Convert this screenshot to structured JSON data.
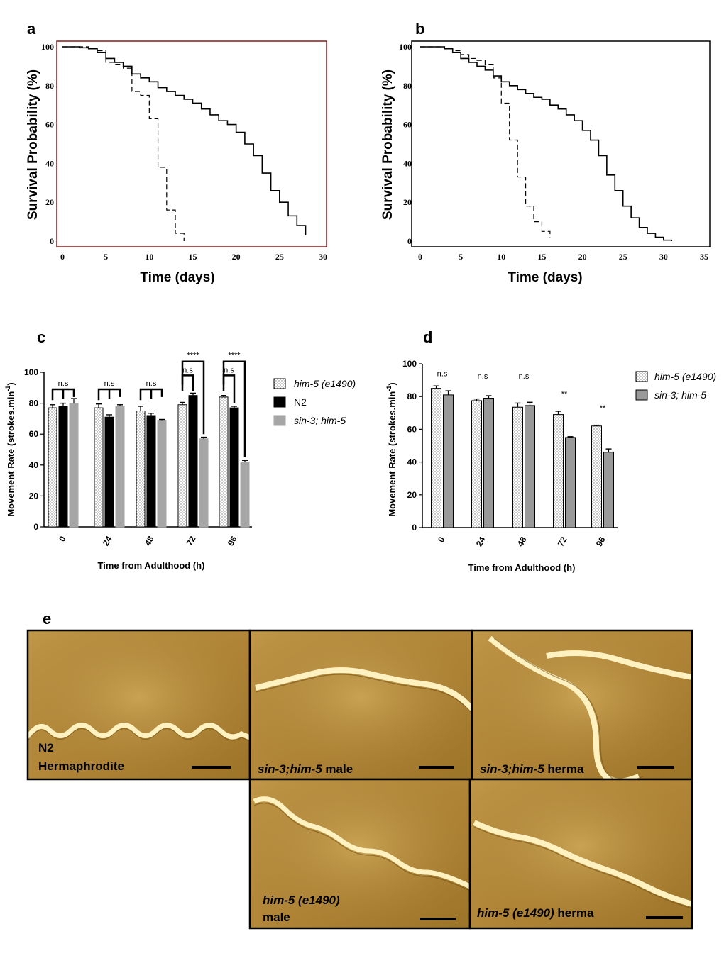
{
  "panel_labels": {
    "a": "a",
    "b": "b",
    "c": "c",
    "d": "d",
    "e": "e"
  },
  "colors": {
    "him5": "#ffffff",
    "n2": "#000000",
    "sin3": "#a6a6a6",
    "sin3_d": "#999999",
    "frame_a": "#8b1a1a",
    "photo_bg": "#b48a3a",
    "worm": "#fff0bb"
  },
  "chart_data": [
    {
      "id": "a",
      "type": "line",
      "xlabel": "Time (days)",
      "ylabel": "Survival Probability (%)",
      "xlim": [
        0,
        30
      ],
      "ylim": [
        0,
        100
      ],
      "xticks": [
        0,
        5,
        10,
        15,
        20,
        25,
        30
      ],
      "yticks": [
        0,
        20,
        40,
        60,
        80,
        100
      ],
      "series": [
        {
          "name": "solid",
          "x": [
            0,
            1,
            2,
            3,
            4,
            5,
            6,
            7,
            8,
            9,
            10,
            11,
            12,
            13,
            14,
            15,
            16,
            17,
            18,
            19,
            20,
            21,
            22,
            23,
            24,
            25,
            26,
            27,
            28
          ],
          "y": [
            100,
            100,
            99.5,
            99,
            97,
            94,
            92,
            90,
            86,
            84,
            82,
            79,
            77,
            75,
            73,
            71,
            68,
            65,
            62,
            60,
            56,
            50,
            44,
            35,
            26,
            20,
            13,
            8,
            3
          ]
        },
        {
          "name": "dashed",
          "x": [
            0,
            1,
            2,
            3,
            4,
            5,
            6,
            7,
            8,
            9,
            10,
            11,
            12,
            13,
            14
          ],
          "y": [
            100,
            100,
            100,
            99,
            98,
            92,
            91,
            89,
            77,
            75,
            63,
            38,
            16,
            4,
            0
          ]
        }
      ]
    },
    {
      "id": "b",
      "type": "line",
      "xlabel": "Time (days)",
      "ylabel": "Survival Probability (%)",
      "xlim": [
        0,
        35
      ],
      "ylim": [
        0,
        100
      ],
      "xticks": [
        0,
        5,
        10,
        15,
        20,
        25,
        30,
        35
      ],
      "yticks": [
        0,
        20,
        40,
        60,
        80,
        100
      ],
      "series": [
        {
          "name": "solid",
          "x": [
            0,
            1,
            2,
            3,
            4,
            5,
            6,
            7,
            8,
            9,
            10,
            11,
            12,
            13,
            14,
            15,
            16,
            17,
            18,
            19,
            20,
            21,
            22,
            23,
            24,
            25,
            26,
            27,
            28,
            29,
            30,
            31
          ],
          "y": [
            100,
            100,
            100,
            99,
            97,
            94,
            92,
            90,
            88,
            85,
            82,
            80,
            78,
            76,
            74,
            73,
            70,
            68,
            65,
            62,
            57,
            52,
            44,
            34,
            26,
            18,
            12,
            7,
            4,
            2,
            0.5,
            0
          ]
        },
        {
          "name": "dashed",
          "x": [
            0,
            1,
            2,
            3,
            4,
            5,
            6,
            7,
            8,
            9,
            10,
            11,
            12,
            13,
            14,
            15,
            16
          ],
          "y": [
            100,
            100,
            100,
            99,
            98,
            96,
            94,
            93,
            91,
            84,
            71,
            52,
            33,
            18,
            10,
            5,
            2
          ]
        }
      ]
    },
    {
      "id": "c",
      "type": "bar",
      "xlabel": "Time from Adulthood (h)",
      "ylabel_main": "Movement Rate (strokes.min",
      "ylabel_sup": "-1",
      "ylabel_close": ")",
      "ylim": [
        0,
        100
      ],
      "yticks": [
        0,
        20,
        40,
        60,
        80,
        100
      ],
      "categories": [
        "0",
        "24",
        "48",
        "72",
        "96"
      ],
      "series": [
        {
          "name": "him-5 (e1490)",
          "values": [
            77,
            77,
            75,
            79,
            84
          ],
          "errors": [
            2,
            2.5,
            3,
            1.5,
            1
          ]
        },
        {
          "name": "N2",
          "values": [
            78,
            71,
            72,
            85,
            77
          ],
          "errors": [
            2,
            1.5,
            1.5,
            1.5,
            1
          ]
        },
        {
          "name": "sin-3; him-5",
          "values": [
            80,
            78,
            69,
            57,
            42
          ],
          "errors": [
            3,
            1,
            0.5,
            1,
            1
          ]
        }
      ],
      "significance": [
        {
          "category": "0",
          "labels": [
            "n.s"
          ]
        },
        {
          "category": "24",
          "labels": [
            "n.s"
          ]
        },
        {
          "category": "48",
          "labels": [
            "n.s"
          ]
        },
        {
          "category": "72",
          "labels": [
            "****",
            "n.s"
          ]
        },
        {
          "category": "96",
          "labels": [
            "****",
            "n.s"
          ]
        }
      ]
    },
    {
      "id": "d",
      "type": "bar",
      "xlabel": "Time from Adulthood (h)",
      "ylabel_main": "Movement Rate (strokes.min",
      "ylabel_sup": "-1",
      "ylabel_close": ")",
      "ylim": [
        0,
        100
      ],
      "yticks": [
        0,
        20,
        40,
        60,
        80,
        100
      ],
      "categories": [
        "0",
        "24",
        "48",
        "72",
        "96"
      ],
      "series": [
        {
          "name": "him-5 (e1490)",
          "values": [
            85,
            77.5,
            73.5,
            69,
            62
          ],
          "errors": [
            1.5,
            1,
            2.5,
            2,
            0.5
          ]
        },
        {
          "name": "sin-3; him-5",
          "values": [
            81,
            79,
            74.5,
            55,
            46
          ],
          "errors": [
            2.5,
            1.5,
            2,
            0.5,
            2
          ]
        }
      ],
      "significance": [
        "n.s",
        "n.s",
        "n.s",
        "**",
        "**"
      ]
    }
  ],
  "photos": [
    {
      "line1": "N2",
      "line2": "Hermaphrodite"
    },
    {
      "line1_italic": "sin-3;him-5",
      "line1_rest": " male"
    },
    {
      "line1_italic": "sin-3;him-5",
      "line1_rest": " herma"
    },
    {
      "line1": "him-5 (e1490)",
      "line2": "male"
    },
    {
      "line1": "him-5 (e1490)",
      "line1_rest": " herma"
    }
  ]
}
